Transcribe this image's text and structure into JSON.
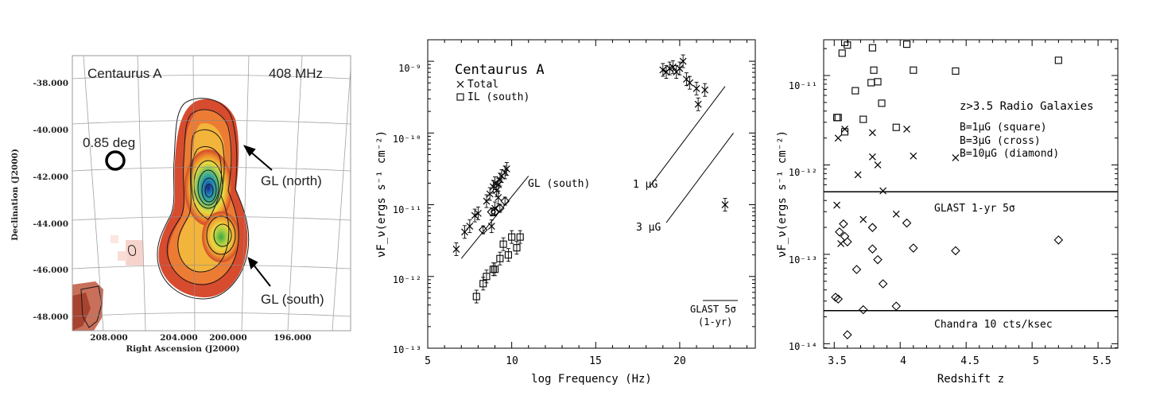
{
  "panel_a": {
    "title": "Centaurus A",
    "freq": "408 MHz",
    "beam_label": "0.85 deg",
    "label_north": "GL (north)",
    "label_south": "GL (south)",
    "xlabel": "Right Ascension (J2000)",
    "ylabel": "Declination (J2000)",
    "xticks": [
      "208.000",
      "204.000",
      "200.000",
      "196.000"
    ],
    "yticks": [
      "-38.000",
      "-40.000",
      "-42.000",
      "-44.000",
      "-46.000",
      "-48.000"
    ]
  },
  "panel_b": {
    "title": "Centaurus A",
    "legend_total": "Total",
    "legend_il": "IL (south)",
    "label_gl_south": "GL (south)",
    "label_1uG": "1 μG",
    "label_3uG": "3 μG",
    "glast_line1": "GLAST 5σ",
    "glast_line2": "(1-yr)",
    "xlabel": "log Frequency (Hz)",
    "ylabel": "νF_ν(ergs s⁻¹ cm⁻²)",
    "xticks": [
      "5",
      "10",
      "15",
      "20"
    ],
    "yticks": [
      "10⁻⁹",
      "10⁻¹⁰",
      "10⁻¹¹",
      "10⁻¹²",
      "10⁻¹³"
    ]
  },
  "panel_c": {
    "title": "z>3.5 Radio Galaxies",
    "legend1": "B=1μG (square)",
    "legend2": "B=3μG (cross)",
    "legend3": "B=10μG (diamond)",
    "glast_label": "GLAST 1-yr 5σ",
    "chandra_label": "Chandra 10 cts/ksec",
    "xlabel": "Redshift z",
    "ylabel": "νF_ν(ergs s⁻¹ cm⁻²)",
    "xticks": [
      "3.5",
      "4",
      "4.5",
      "5",
      "5.5"
    ],
    "yticks": [
      "10⁻¹¹",
      "10⁻¹²",
      "10⁻¹³",
      "10⁻¹⁴"
    ]
  },
  "chart_data": [
    {
      "type": "heatmap",
      "title": "Centaurus A",
      "xlabel": "Right Ascension (J2000)",
      "ylabel": "Declination (J2000)",
      "xlim": [
        210.5,
        190
      ],
      "ylim": [
        -49,
        -37
      ],
      "peak": {
        "ra": 201.5,
        "dec": -42.6
      }
    },
    {
      "type": "scatter",
      "title": "Centaurus A",
      "xlabel": "log Frequency (Hz)",
      "ylabel": "νF_ν(ergs s⁻¹ cm⁻²)",
      "xlim": [
        5,
        24.5
      ],
      "ylim_log10": [
        -13,
        -8.7
      ],
      "series": [
        {
          "name": "Total",
          "marker": "cross",
          "x": [
            6.7,
            7.2,
            7.5,
            7.8,
            8.0,
            8.5,
            8.7,
            8.9,
            9.0,
            9.1,
            9.2,
            9.3,
            9.4,
            9.6,
            9.7,
            9.0,
            9.2,
            8.8,
            19.0,
            19.2,
            19.4,
            19.6,
            19.8,
            20.0,
            20.2,
            20.4,
            20.6,
            21.0,
            21.1,
            21.5,
            22.7
          ],
          "y_log10": [
            -11.62,
            -11.38,
            -11.3,
            -11.15,
            -11.12,
            -10.95,
            -10.85,
            -10.75,
            -10.7,
            -10.8,
            -10.72,
            -10.65,
            -10.6,
            -10.55,
            -10.5,
            -11.05,
            -10.9,
            -11.3,
            -9.12,
            -9.15,
            -9.1,
            -9.08,
            -9.15,
            -9.1,
            -9.0,
            -9.25,
            -9.3,
            -9.38,
            -9.6,
            -9.4,
            -11.0
          ]
        },
        {
          "name": "IL (south)",
          "marker": "square",
          "x": [
            7.9,
            8.3,
            8.5,
            8.9,
            9.0,
            9.3,
            9.5,
            9.8,
            10.0,
            10.3,
            10.5
          ],
          "y_log10": [
            -12.28,
            -12.1,
            -12.0,
            -11.9,
            -11.9,
            -11.75,
            -11.55,
            -11.7,
            -11.45,
            -11.6,
            -11.45
          ]
        },
        {
          "name": "GL (south)",
          "marker": "diamond",
          "x": [
            8.3,
            8.8,
            9.0,
            9.3,
            9.6
          ],
          "y_log10": [
            -11.35,
            -11.1,
            -11.1,
            -11.05,
            -10.95
          ]
        }
      ],
      "lines": [
        {
          "name": "GL (south)",
          "x": [
            7.0,
            11.0
          ],
          "y_log10": [
            -11.75,
            -10.6
          ]
        },
        {
          "name": "1 μG",
          "x": [
            18.2,
            22.7
          ],
          "y_log10": [
            -10.75,
            -9.35
          ]
        },
        {
          "name": "3 μG",
          "x": [
            19.2,
            23.2
          ],
          "y_log10": [
            -11.25,
            -10.0
          ]
        }
      ]
    },
    {
      "type": "scatter",
      "title": "z>3.5 Radio Galaxies",
      "xlabel": "Redshift z",
      "ylabel": "νF_ν(ergs s⁻¹ cm⁻²)",
      "xlim": [
        3.42,
        5.65
      ],
      "ylim_log10": [
        -14.05,
        -10.6
      ],
      "hlines": [
        {
          "label": "GLAST 1-yr 5σ",
          "y_log10": -12.3
        },
        {
          "label": "Chandra 10 cts/ksec",
          "y_log10": -13.63
        }
      ],
      "series": [
        {
          "name": "B=1μG (square)",
          "marker": "square",
          "x": [
            3.52,
            3.53,
            3.56,
            3.58,
            3.58,
            3.6,
            3.66,
            3.72,
            3.78,
            3.79,
            3.8,
            3.83,
            3.86,
            3.97,
            4.05,
            4.1,
            4.42,
            5.2
          ],
          "y_log10": [
            -11.47,
            -11.47,
            -10.75,
            -10.63,
            -11.63,
            -10.66,
            -11.17,
            -11.49,
            -11.08,
            -10.69,
            -10.94,
            -11.07,
            -11.31,
            -11.58,
            -10.65,
            -10.94,
            -10.95,
            -10.83
          ]
        },
        {
          "name": "B=3μG (cross)",
          "marker": "cross",
          "x": [
            3.52,
            3.53,
            3.55,
            3.58,
            3.68,
            3.72,
            3.79,
            3.79,
            3.83,
            3.87,
            3.97,
            4.05,
            4.1,
            4.42
          ],
          "y_log10": [
            -12.45,
            -11.7,
            -12.88,
            -11.6,
            -12.11,
            -12.61,
            -11.64,
            -11.91,
            -12.0,
            -12.29,
            -12.55,
            -11.6,
            -11.9,
            -11.92
          ]
        },
        {
          "name": "B=10μG (diamond)",
          "marker": "diamond",
          "x": [
            3.51,
            3.53,
            3.54,
            3.57,
            3.58,
            3.6,
            3.6,
            3.67,
            3.72,
            3.79,
            3.79,
            3.83,
            3.87,
            3.97,
            4.05,
            4.1,
            4.42,
            5.2
          ],
          "y_log10": [
            -13.48,
            -13.5,
            -12.75,
            -12.66,
            -12.8,
            -12.86,
            -13.9,
            -13.17,
            -13.62,
            -12.7,
            -12.94,
            -13.06,
            -13.33,
            -13.58,
            -12.65,
            -12.93,
            -12.96,
            -12.84
          ]
        }
      ]
    }
  ]
}
